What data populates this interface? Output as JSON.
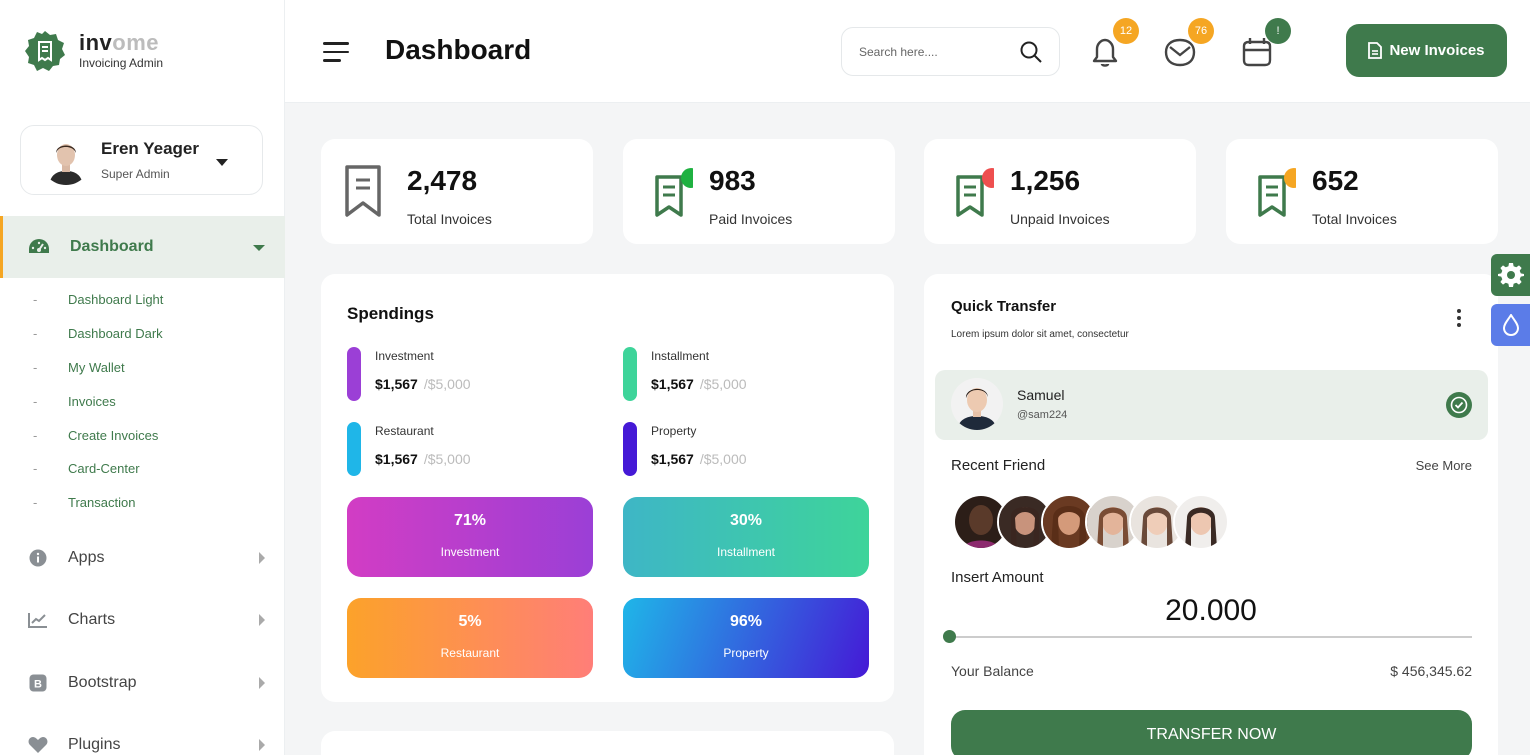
{
  "brand": {
    "name_dark": "inv",
    "name_light": "ome",
    "subtitle": "Invoicing Admin"
  },
  "profile": {
    "name": "Eren Yeager",
    "role": "Super Admin"
  },
  "sidebar": {
    "active": {
      "label": "Dashboard",
      "icon": "gauge-icon"
    },
    "subitems": [
      "Dashboard Light",
      "Dashboard Dark",
      "My Wallet",
      "Invoices",
      "Create Invoices",
      "Card-Center",
      "Transaction"
    ],
    "items": [
      {
        "label": "Apps",
        "icon": "info-icon"
      },
      {
        "label": "Charts",
        "icon": "chart-line-icon"
      },
      {
        "label": "Bootstrap",
        "icon": "bootstrap-icon"
      },
      {
        "label": "Plugins",
        "icon": "heart-icon"
      }
    ]
  },
  "header": {
    "title": "Dashboard",
    "search_placeholder": "Search here....",
    "notifications_count": "12",
    "messages_count": "76",
    "calendar_badge": "!",
    "new_button": "New Invoices"
  },
  "stats": [
    {
      "value": "2,478",
      "label": "Total Invoices",
      "dot": ""
    },
    {
      "value": "983",
      "label": "Paid Invoices",
      "dot": "#1fb141"
    },
    {
      "value": "1,256",
      "label": "Unpaid Invoices",
      "dot": "#ee4f4f"
    },
    {
      "value": "652",
      "label": "Total Invoices",
      "dot": "#f5a623"
    }
  ],
  "spendings": {
    "title": "Spendings",
    "items": [
      {
        "name": "Investment",
        "value": "$1,567",
        "max": "/$5,000",
        "color": "#9b3fd6"
      },
      {
        "name": "Installment",
        "value": "$1,567",
        "max": "/$5,000",
        "color": "#3ed49a"
      },
      {
        "name": "Restaurant",
        "value": "$1,567",
        "max": "/$5,000",
        "color": "#1fb6e8"
      },
      {
        "name": "Property",
        "value": "$1,567",
        "max": "/$5,000",
        "color": "#4519d6"
      }
    ],
    "tiles": [
      {
        "pct": "71%",
        "label": "Investment"
      },
      {
        "pct": "30%",
        "label": "Installment"
      },
      {
        "pct": "5%",
        "label": "Restaurant"
      },
      {
        "pct": "96%",
        "label": "Property"
      }
    ]
  },
  "quick_transfer": {
    "title": "Quick Transfer",
    "subtitle": "Lorem ipsum dolor sit amet, consectetur",
    "user": {
      "name": "Samuel",
      "handle": "@sam224"
    },
    "recent_label": "Recent Friend",
    "see_more": "See More",
    "insert_label": "Insert Amount",
    "amount": "20.000",
    "slider_value": 0,
    "balance_label": "Your Balance",
    "balance_value": "$ 456,345.62",
    "button": "TRANSFER NOW"
  }
}
